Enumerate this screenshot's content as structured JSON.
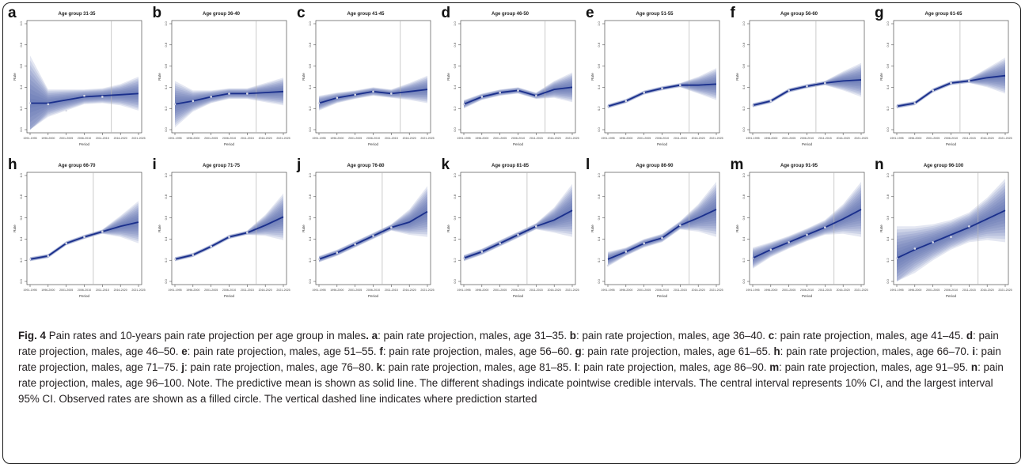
{
  "caption": {
    "fig_label": "Fig. 4",
    "title": "Pain rates and 10-years pain rate projection per age group in males",
    "items": [
      {
        "letter": "a",
        "text": "pain rate projection, males, age 31–35"
      },
      {
        "letter": "b",
        "text": "pain rate projection, males, age 36–40"
      },
      {
        "letter": "c",
        "text": "pain rate projection, males, age 41–45"
      },
      {
        "letter": "d",
        "text": "pain rate projection, males, age 46–50"
      },
      {
        "letter": "e",
        "text": "pain rate projection, males, age 51–55"
      },
      {
        "letter": "f",
        "text": "pain rate projection, males, age 56–60"
      },
      {
        "letter": "g",
        "text": "pain rate projection, males, age 61–65"
      },
      {
        "letter": "h",
        "text": "pain rate projection, males, age 66–70"
      },
      {
        "letter": "i",
        "text": "pain rate projection, males, age 71–75"
      },
      {
        "letter": "j",
        "text": "pain rate projection, males, age 76–80"
      },
      {
        "letter": "k",
        "text": "pain rate projection, males, age 81–85"
      },
      {
        "letter": "l",
        "text": "pain rate projection, males, age 86–90"
      },
      {
        "letter": "m",
        "text": "pain rate projection, males, age 91–95"
      },
      {
        "letter": "n",
        "text": "pain rate projection, males, age 96–100"
      }
    ],
    "note": "Note. The predictive mean is shown as solid line. The different shadings indicate pointwise credible intervals. The central interval represents 10% CI, and the largest interval 95% CI. Observed rates are shown as a filled circle. The vertical dashed line indicates where prediction started"
  },
  "colors": {
    "line": "#1a2f8c",
    "band": "#5a6cb0",
    "point": "#d9dbe6",
    "vline": "#b5b5b5",
    "axis": "#333333"
  },
  "chart_data": [
    {
      "label": "a",
      "type": "line",
      "title": "Age group 31-35",
      "xlabel": "Period",
      "ylabel": "Rate",
      "x": [
        "1991-1995",
        "1996-2000",
        "2001-2005",
        "2006-2010",
        "2011-2015",
        "2016-2020",
        "2021-2025"
      ],
      "mean": [
        0.25,
        0.25,
        0.28,
        0.31,
        0.32,
        0.33,
        0.34
      ],
      "observed": [
        0.25,
        0.24,
        0.18,
        0.32,
        0.31
      ],
      "ci95_halfwidth": [
        0.45,
        0.13,
        0.1,
        0.07,
        0.07,
        0.1,
        0.16
      ],
      "prediction_start": "2016-2020",
      "ylim": [
        0,
        1
      ]
    },
    {
      "label": "b",
      "type": "line",
      "title": "Age group 36-40",
      "xlabel": "Period",
      "ylabel": "Rate",
      "x": [
        "1991-1995",
        "1996-2000",
        "2001-2005",
        "2006-2010",
        "2011-2015",
        "2016-2020",
        "2021-2025"
      ],
      "mean": [
        0.24,
        0.27,
        0.31,
        0.34,
        0.34,
        0.35,
        0.36
      ],
      "observed": [
        0.24,
        0.27,
        0.31,
        0.34,
        0.34
      ],
      "ci95_halfwidth": [
        0.22,
        0.1,
        0.06,
        0.05,
        0.05,
        0.09,
        0.13
      ],
      "prediction_start": "2016-2020",
      "ylim": [
        0,
        1
      ]
    },
    {
      "label": "c",
      "type": "line",
      "title": "Age group 41-45",
      "xlabel": "Period",
      "ylabel": "Rate",
      "x": [
        "1991-1995",
        "1996-2000",
        "2001-2005",
        "2006-2010",
        "2011-2015",
        "2016-2020",
        "2021-2025"
      ],
      "mean": [
        0.25,
        0.3,
        0.33,
        0.36,
        0.34,
        0.36,
        0.38
      ],
      "observed": [
        0.25,
        0.3,
        0.33,
        0.36,
        0.34
      ],
      "ci95_halfwidth": [
        0.07,
        0.05,
        0.04,
        0.04,
        0.04,
        0.08,
        0.13
      ],
      "prediction_start": "2016-2020",
      "ylim": [
        0,
        1
      ]
    },
    {
      "label": "d",
      "type": "line",
      "title": "Age group 46-50",
      "xlabel": "Period",
      "ylabel": "Rate",
      "x": [
        "1991-1995",
        "1996-2000",
        "2001-2005",
        "2006-2010",
        "2011-2015",
        "2016-2020",
        "2021-2025"
      ],
      "mean": [
        0.24,
        0.31,
        0.35,
        0.37,
        0.32,
        0.38,
        0.4
      ],
      "observed": [
        0.24,
        0.31,
        0.35,
        0.37,
        0.32
      ],
      "ci95_halfwidth": [
        0.04,
        0.03,
        0.03,
        0.03,
        0.03,
        0.08,
        0.14
      ],
      "prediction_start": "2016-2020",
      "ylim": [
        0,
        1
      ]
    },
    {
      "label": "e",
      "type": "line",
      "title": "Age group 51-55",
      "xlabel": "Period",
      "ylabel": "Rate",
      "x": [
        "1991-1995",
        "1996-2000",
        "2001-2005",
        "2006-2010",
        "2011-2015",
        "2016-2020",
        "2021-2025"
      ],
      "mean": [
        0.22,
        0.27,
        0.35,
        0.39,
        0.42,
        0.42,
        0.43
      ],
      "observed": [
        0.22,
        0.27,
        0.35,
        0.39,
        0.42
      ],
      "ci95_halfwidth": [
        0.02,
        0.02,
        0.02,
        0.02,
        0.02,
        0.08,
        0.15
      ],
      "prediction_start": "2016-2020",
      "ylim": [
        0,
        1
      ]
    },
    {
      "label": "f",
      "type": "line",
      "title": "Age group 56-60",
      "xlabel": "Period",
      "ylabel": "Rate",
      "x": [
        "1991-1995",
        "1996-2000",
        "2001-2005",
        "2006-2010",
        "2011-2015",
        "2016-2020",
        "2021-2025"
      ],
      "mean": [
        0.23,
        0.27,
        0.37,
        0.41,
        0.44,
        0.46,
        0.47
      ],
      "observed": [
        0.23,
        0.27,
        0.37,
        0.41,
        0.44
      ],
      "ci95_halfwidth": [
        0.02,
        0.02,
        0.02,
        0.02,
        0.02,
        0.09,
        0.16
      ],
      "prediction_start": "2011-2015",
      "ylim": [
        0,
        1
      ]
    },
    {
      "label": "g",
      "type": "line",
      "title": "Age group 61-65",
      "xlabel": "Period",
      "ylabel": "Rate",
      "x": [
        "1991-1995",
        "1996-2000",
        "2001-2005",
        "2006-2010",
        "2011-2015",
        "2016-2020",
        "2021-2025"
      ],
      "mean": [
        0.22,
        0.25,
        0.37,
        0.44,
        0.46,
        0.49,
        0.51
      ],
      "observed": [
        0.22,
        0.25,
        0.37,
        0.44,
        0.46
      ],
      "ci95_halfwidth": [
        0.02,
        0.02,
        0.02,
        0.02,
        0.02,
        0.09,
        0.17
      ],
      "prediction_start": "2011-2015",
      "ylim": [
        0,
        1
      ]
    },
    {
      "label": "h",
      "type": "line",
      "title": "Age group 66-70",
      "xlabel": "Period",
      "ylabel": "Rate",
      "x": [
        "1991-1995",
        "1996-2000",
        "2001-2005",
        "2006-2010",
        "2011-2015",
        "2016-2020",
        "2021-2025"
      ],
      "mean": [
        0.21,
        0.24,
        0.36,
        0.42,
        0.47,
        0.52,
        0.56
      ],
      "observed": [
        0.21,
        0.24,
        0.36,
        0.42,
        0.47
      ],
      "ci95_halfwidth": [
        0.02,
        0.02,
        0.02,
        0.02,
        0.02,
        0.1,
        0.2
      ],
      "prediction_start": "2011-2015",
      "ylim": [
        0,
        1
      ]
    },
    {
      "label": "i",
      "type": "line",
      "title": "Age group 71-75",
      "xlabel": "Period",
      "ylabel": "Rate",
      "x": [
        "1991-1995",
        "1996-2000",
        "2001-2005",
        "2006-2010",
        "2011-2015",
        "2016-2020",
        "2021-2025"
      ],
      "mean": [
        0.21,
        0.25,
        0.33,
        0.42,
        0.46,
        0.53,
        0.61
      ],
      "observed": [
        0.21,
        0.25,
        0.33,
        0.42,
        0.46
      ],
      "ci95_halfwidth": [
        0.02,
        0.02,
        0.02,
        0.02,
        0.02,
        0.1,
        0.22
      ],
      "prediction_start": "2016-2020",
      "ylim": [
        0,
        1
      ]
    },
    {
      "label": "j",
      "type": "line",
      "title": "Age group 76-80",
      "xlabel": "Period",
      "ylabel": "Rate",
      "x": [
        "1991-1995",
        "1996-2000",
        "2001-2005",
        "2006-2010",
        "2011-2015",
        "2016-2020",
        "2021-2025"
      ],
      "mean": [
        0.21,
        0.27,
        0.35,
        0.43,
        0.51,
        0.56,
        0.66
      ],
      "observed": [
        0.21,
        0.27,
        0.35,
        0.43,
        0.51
      ],
      "ci95_halfwidth": [
        0.03,
        0.03,
        0.03,
        0.03,
        0.03,
        0.12,
        0.24
      ],
      "prediction_start": "2011-2015",
      "ylim": [
        0,
        1
      ]
    },
    {
      "label": "k",
      "type": "line",
      "title": "Age group 81-85",
      "xlabel": "Period",
      "ylabel": "Rate",
      "x": [
        "1991-1995",
        "1996-2000",
        "2001-2005",
        "2006-2010",
        "2011-2015",
        "2016-2020",
        "2021-2025"
      ],
      "mean": [
        0.22,
        0.28,
        0.36,
        0.44,
        0.52,
        0.58,
        0.67
      ],
      "observed": [
        0.22,
        0.28,
        0.36,
        0.44,
        0.52
      ],
      "ci95_halfwidth": [
        0.03,
        0.03,
        0.03,
        0.03,
        0.03,
        0.12,
        0.25
      ],
      "prediction_start": "2011-2015",
      "ylim": [
        0,
        1
      ]
    },
    {
      "label": "l",
      "type": "line",
      "title": "Age group 86-90",
      "xlabel": "Period",
      "ylabel": "Rate",
      "x": [
        "1991-1995",
        "1996-2000",
        "2001-2005",
        "2006-2010",
        "2011-2015",
        "2016-2020",
        "2021-2025"
      ],
      "mean": [
        0.21,
        0.28,
        0.36,
        0.41,
        0.53,
        0.6,
        0.68
      ],
      "observed": [
        0.15,
        0.28,
        0.36,
        0.41,
        0.53
      ],
      "ci95_halfwidth": [
        0.07,
        0.04,
        0.04,
        0.04,
        0.04,
        0.13,
        0.26
      ],
      "prediction_start": "2016-2020",
      "ylim": [
        0,
        1
      ]
    },
    {
      "label": "m",
      "type": "line",
      "title": "Age group 91-95",
      "xlabel": "Period",
      "ylabel": "Rate",
      "x": [
        "1991-1995",
        "1996-2000",
        "2001-2005",
        "2006-2010",
        "2011-2015",
        "2016-2020",
        "2021-2025"
      ],
      "mean": [
        0.22,
        0.3,
        0.37,
        0.44,
        0.51,
        0.59,
        0.68
      ],
      "observed": [
        0.22,
        0.3,
        0.37,
        0.44,
        0.51
      ],
      "ci95_halfwidth": [
        0.1,
        0.07,
        0.06,
        0.06,
        0.07,
        0.14,
        0.26
      ],
      "prediction_start": "2016-2020",
      "ylim": [
        0,
        1
      ]
    },
    {
      "label": "n",
      "type": "line",
      "title": "Age group 96-100",
      "xlabel": "Period",
      "ylabel": "Rate",
      "x": [
        "1991-1995",
        "1996-2000",
        "2001-2005",
        "2006-2010",
        "2011-2015",
        "2016-2020",
        "2021-2025"
      ],
      "mean": [
        0.22,
        0.3,
        0.37,
        0.44,
        0.51,
        0.59,
        0.67
      ],
      "observed": [
        0.22,
        0.31,
        0.37,
        0.42,
        0.52
      ],
      "ci95_halfwidth": [
        0.3,
        0.22,
        0.17,
        0.14,
        0.14,
        0.2,
        0.3
      ],
      "prediction_start": "2016-2020",
      "ylim": [
        0,
        1
      ]
    }
  ]
}
